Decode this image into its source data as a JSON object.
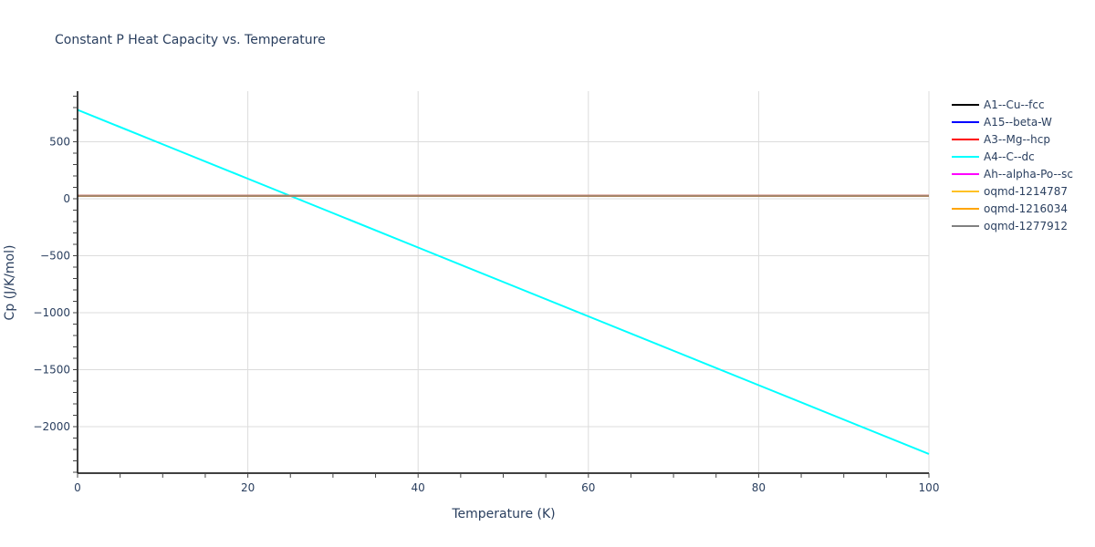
{
  "chart_data": {
    "type": "line",
    "title": "Constant P Heat Capacity vs. Temperature",
    "xlabel": "Temperature (K)",
    "ylabel": "Cp (J/K/mol)",
    "xlim": [
      0,
      100
    ],
    "ylim": [
      -2408,
      944
    ],
    "x_ticks": [
      0,
      20,
      40,
      60,
      80,
      100
    ],
    "y_ticks": [
      -2000,
      -1500,
      -1000,
      -500,
      0,
      500
    ],
    "x_tick_labels": [
      "0",
      "20",
      "40",
      "60",
      "80",
      "100"
    ],
    "y_tick_labels": [
      "−2000",
      "−1500",
      "−1000",
      "−500",
      "0",
      "500"
    ],
    "grid": true,
    "legend_position": "right",
    "x": [
      0,
      10,
      20,
      30,
      40,
      50,
      60,
      70,
      80,
      90,
      100
    ],
    "series": [
      {
        "name": "A1--Cu--fcc",
        "color": "#000000",
        "values": [
          25,
          25,
          25,
          25,
          25,
          25,
          25,
          25,
          25,
          25,
          25
        ]
      },
      {
        "name": "A15--beta-W",
        "color": "#0000ff",
        "values": [
          25,
          25,
          25,
          25,
          25,
          25,
          25,
          25,
          25,
          25,
          25
        ]
      },
      {
        "name": "A3--Mg--hcp",
        "color": "#ff0000",
        "values": [
          25,
          25,
          25,
          25,
          25,
          25,
          25,
          25,
          25,
          25,
          25
        ]
      },
      {
        "name": "A4--C--dc",
        "color": "#00ffff",
        "values": [
          780,
          478,
          176,
          -126,
          -428,
          -730,
          -1032,
          -1334,
          -1636,
          -1938,
          -2240
        ]
      },
      {
        "name": "Ah--alpha-Po--sc",
        "color": "#ff00ff",
        "values": [
          25,
          25,
          25,
          25,
          25,
          25,
          25,
          25,
          25,
          25,
          25
        ]
      },
      {
        "name": "oqmd-1214787",
        "color": "#ffc125",
        "values": [
          25,
          25,
          25,
          25,
          25,
          25,
          25,
          25,
          25,
          25,
          25
        ]
      },
      {
        "name": "oqmd-1216034",
        "color": "#ffa500",
        "values": [
          25,
          25,
          25,
          25,
          25,
          25,
          25,
          25,
          25,
          25,
          25
        ]
      },
      {
        "name": "oqmd-1277912",
        "color": "#808080",
        "values": [
          25,
          25,
          25,
          25,
          25,
          25,
          25,
          25,
          25,
          25,
          25
        ]
      }
    ]
  }
}
